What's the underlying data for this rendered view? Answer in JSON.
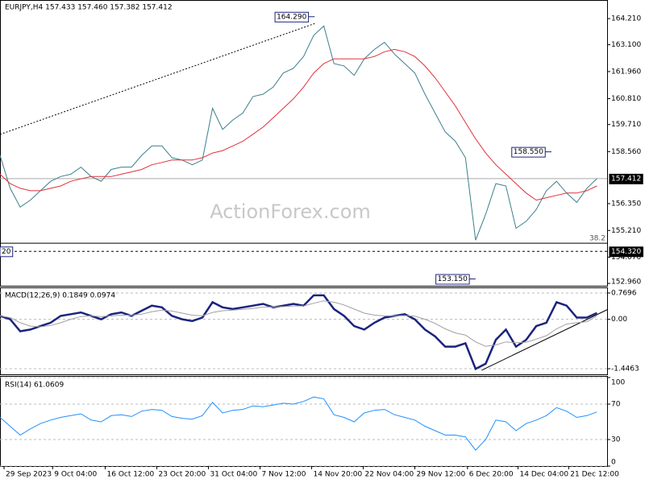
{
  "chart_data": [
    {
      "type": "line",
      "title": "EURJPY,H4 157.433 157.460 157.382 157.412",
      "watermark": "ActionForex.com",
      "x": [
        0,
        1,
        2,
        3,
        4,
        5,
        6,
        7,
        8,
        9,
        10,
        11,
        12,
        13,
        14,
        15,
        16,
        17,
        18,
        19,
        20,
        21,
        22,
        23,
        24,
        25,
        26,
        27,
        28,
        29,
        30,
        31,
        32,
        33,
        34,
        35,
        36,
        37,
        38,
        39,
        40,
        41,
        42,
        43,
        44,
        45,
        46,
        47,
        48,
        49,
        50,
        51,
        52,
        53,
        54,
        55,
        56,
        57,
        58,
        59
      ],
      "xlim": [
        0,
        60
      ],
      "ylim": [
        152.86,
        165.0
      ],
      "yticks": [
        {
          "value": 164.21,
          "label": "164.210"
        },
        {
          "value": 163.1,
          "label": "163.100"
        },
        {
          "value": 161.96,
          "label": "161.960"
        },
        {
          "value": 160.81,
          "label": "160.810"
        },
        {
          "value": 159.71,
          "label": "159.710"
        },
        {
          "value": 158.56,
          "label": "158.560"
        },
        {
          "value": 156.35,
          "label": "156.350"
        },
        {
          "value": 155.21,
          "label": "155.210"
        },
        {
          "value": 154.07,
          "label": "154.070"
        },
        {
          "value": 152.96,
          "label": "152.960"
        }
      ],
      "series": [
        {
          "name": "EURJPY",
          "color": "#3d7f8c",
          "values": [
            158.4,
            157.0,
            156.2,
            156.5,
            156.9,
            157.3,
            157.5,
            157.6,
            157.9,
            157.5,
            157.3,
            157.8,
            157.9,
            157.9,
            158.4,
            158.8,
            158.8,
            158.3,
            158.2,
            158.0,
            158.2,
            160.4,
            159.5,
            159.9,
            160.2,
            160.9,
            161.0,
            161.3,
            161.9,
            162.1,
            162.6,
            163.5,
            163.9,
            162.3,
            162.2,
            161.8,
            162.5,
            162.9,
            163.2,
            162.7,
            162.3,
            161.9,
            161.0,
            160.2,
            159.4,
            159.0,
            158.3,
            154.8,
            155.9,
            157.2,
            157.1,
            155.3,
            155.6,
            156.1,
            156.9,
            157.3,
            156.8,
            156.4,
            157.0,
            157.412
          ]
        },
        {
          "name": "MA",
          "color": "#e0303a",
          "values": [
            157.6,
            157.2,
            157.0,
            156.9,
            156.9,
            157.0,
            157.1,
            157.3,
            157.4,
            157.5,
            157.5,
            157.5,
            157.6,
            157.7,
            157.8,
            158.0,
            158.1,
            158.2,
            158.2,
            158.2,
            158.3,
            158.5,
            158.6,
            158.8,
            159.0,
            159.3,
            159.6,
            160.0,
            160.4,
            160.8,
            161.3,
            161.9,
            162.3,
            162.5,
            162.5,
            162.5,
            162.5,
            162.6,
            162.8,
            162.9,
            162.8,
            162.6,
            162.2,
            161.7,
            161.1,
            160.5,
            159.8,
            159.1,
            158.5,
            158.0,
            157.6,
            157.2,
            156.8,
            156.5,
            156.6,
            156.7,
            156.8,
            156.8,
            156.9,
            157.1
          ]
        }
      ],
      "price_labels": [
        {
          "label": "164.290",
          "value": 164.29,
          "x": 31.1
        },
        {
          "label": "158.550",
          "value": 158.55,
          "x": 54.5
        },
        {
          "label": "153.150",
          "value": 153.15,
          "x": 47.0
        }
      ],
      "hlines": [
        {
          "value": 157.412,
          "label": "157.412",
          "style": "current"
        },
        {
          "value": 154.32,
          "label": "154.320",
          "style": "dashed",
          "left_label": "20"
        },
        {
          "value": 154.67,
          "label": "38.2",
          "style": "fib"
        }
      ],
      "trendline": {
        "x": [
          0,
          31.1
        ],
        "values": [
          159.29,
          164.0
        ]
      }
    },
    {
      "type": "line",
      "title": "MACD(12,26,9) 0.1849 0.0974",
      "x": [
        0,
        1,
        2,
        3,
        4,
        5,
        6,
        7,
        8,
        9,
        10,
        11,
        12,
        13,
        14,
        15,
        16,
        17,
        18,
        19,
        20,
        21,
        22,
        23,
        24,
        25,
        26,
        27,
        28,
        29,
        30,
        31,
        32,
        33,
        34,
        35,
        36,
        37,
        38,
        39,
        40,
        41,
        42,
        43,
        44,
        45,
        46,
        47,
        48,
        49,
        50,
        51,
        52,
        53,
        54,
        55,
        56,
        57,
        58,
        59
      ],
      "xlim": [
        0,
        60
      ],
      "ylim": [
        -1.61,
        0.91
      ],
      "yticks": [
        0.7696,
        {
          "value": 0,
          "label": "0.00"
        },
        -1.4463
      ],
      "series": [
        {
          "name": "MACD",
          "color": "#1a237e",
          "values": [
            0.1,
            0.0,
            -0.35,
            -0.3,
            -0.2,
            -0.1,
            0.1,
            0.15,
            0.2,
            0.1,
            0.0,
            0.15,
            0.2,
            0.1,
            0.25,
            0.4,
            0.35,
            0.1,
            0.0,
            -0.05,
            0.05,
            0.5,
            0.35,
            0.3,
            0.35,
            0.4,
            0.45,
            0.35,
            0.4,
            0.45,
            0.4,
            0.7,
            0.7,
            0.3,
            0.1,
            -0.2,
            -0.3,
            -0.1,
            0.05,
            0.1,
            0.15,
            0.0,
            -0.3,
            -0.5,
            -0.8,
            -0.8,
            -0.7,
            -1.45,
            -1.3,
            -0.6,
            -0.3,
            -0.8,
            -0.6,
            -0.2,
            -0.1,
            0.5,
            0.4,
            0.05,
            0.05,
            0.1849
          ]
        },
        {
          "name": "Signal",
          "color": "#a0a0a0",
          "values": [
            0.1,
            0.05,
            -0.1,
            -0.2,
            -0.22,
            -0.18,
            -0.1,
            0.0,
            0.08,
            0.1,
            0.08,
            0.1,
            0.12,
            0.12,
            0.15,
            0.22,
            0.27,
            0.24,
            0.18,
            0.12,
            0.1,
            0.2,
            0.25,
            0.27,
            0.29,
            0.32,
            0.36,
            0.36,
            0.37,
            0.39,
            0.39,
            0.47,
            0.54,
            0.5,
            0.42,
            0.3,
            0.18,
            0.12,
            0.1,
            0.1,
            0.11,
            0.09,
            0.0,
            -0.12,
            -0.28,
            -0.4,
            -0.46,
            -0.66,
            -0.79,
            -0.75,
            -0.66,
            -0.69,
            -0.67,
            -0.58,
            -0.48,
            -0.28,
            -0.14,
            -0.1,
            -0.07,
            0.0974
          ]
        }
      ],
      "trendline": {
        "x": [
          47.6,
          60
        ],
        "values": [
          -1.49,
          0.28
        ]
      }
    },
    {
      "type": "line",
      "title": "RSI(14) 61.0609",
      "x": [
        0,
        1,
        2,
        3,
        4,
        5,
        6,
        7,
        8,
        9,
        10,
        11,
        12,
        13,
        14,
        15,
        16,
        17,
        18,
        19,
        20,
        21,
        22,
        23,
        24,
        25,
        26,
        27,
        28,
        29,
        30,
        31,
        32,
        33,
        34,
        35,
        36,
        37,
        38,
        39,
        40,
        41,
        42,
        43,
        44,
        45,
        46,
        47,
        48,
        49,
        50,
        51,
        52,
        53,
        54,
        55,
        56,
        57,
        58,
        59
      ],
      "xlim": [
        0,
        60
      ],
      "ylim": [
        0,
        100
      ],
      "yticks": [
        100,
        70,
        30,
        0
      ],
      "xticks": [
        {
          "value": 0.4,
          "label": "29 Sep 2023"
        },
        {
          "value": 5.2,
          "label": "9 Oct 04:00"
        },
        {
          "value": 10.4,
          "label": "16 Oct 12:00"
        },
        {
          "value": 15.5,
          "label": "23 Oct 20:00"
        },
        {
          "value": 20.6,
          "label": "31 Oct 04:00"
        },
        {
          "value": 25.7,
          "label": "7 Nov 12:00"
        },
        {
          "value": 30.8,
          "label": "14 Nov 20:00"
        },
        {
          "value": 35.9,
          "label": "22 Nov 04:00"
        },
        {
          "value": 41.0,
          "label": "29 Nov 12:00"
        },
        {
          "value": 46.2,
          "label": "6 Dec 20:00"
        },
        {
          "value": 51.2,
          "label": "14 Dec 04:00"
        },
        {
          "value": 56.2,
          "label": "21 Dec 12:00"
        }
      ],
      "series": [
        {
          "name": "RSI",
          "color": "#1e90ff",
          "values": [
            55,
            45,
            35,
            42,
            48,
            52,
            55,
            57,
            59,
            52,
            50,
            57,
            58,
            56,
            62,
            64,
            63,
            56,
            54,
            53,
            57,
            72,
            60,
            63,
            64,
            68,
            67,
            69,
            71,
            70,
            73,
            78,
            76,
            58,
            55,
            50,
            60,
            63,
            64,
            58,
            55,
            52,
            45,
            40,
            35,
            35,
            33,
            18,
            30,
            52,
            50,
            40,
            48,
            52,
            57,
            66,
            62,
            55,
            57,
            61.0609
          ]
        }
      ]
    }
  ]
}
